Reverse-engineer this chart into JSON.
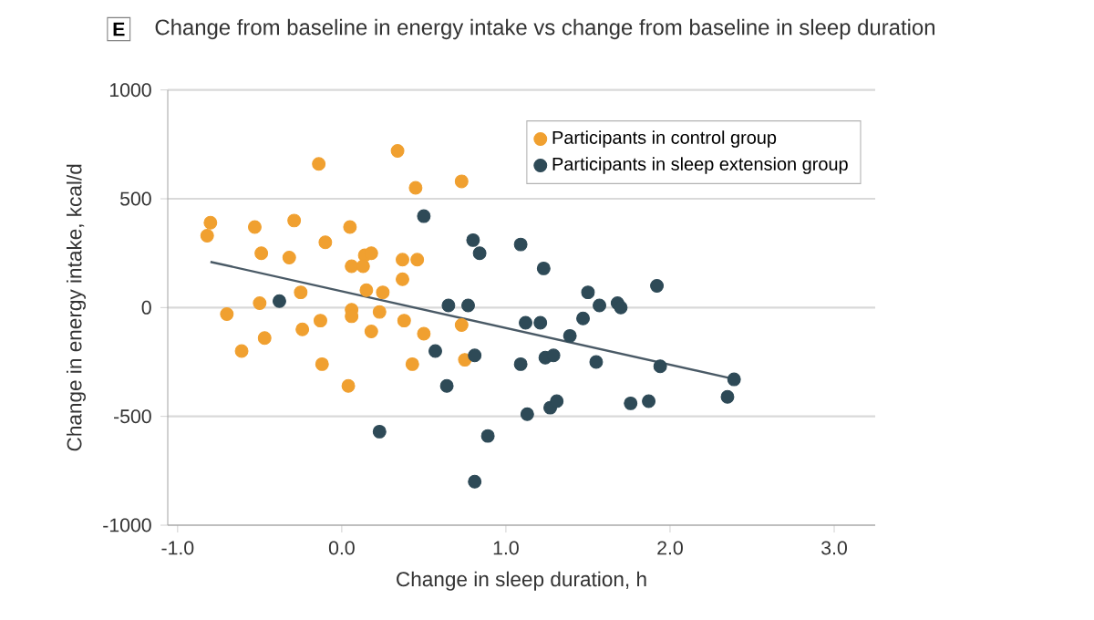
{
  "chart_data": {
    "type": "scatter",
    "title": "Change from baseline in energy intake vs change from baseline in sleep duration",
    "annotations": [
      "E"
    ],
    "xlabel": "Change in sleep duration, h",
    "ylabel": "Change in energy intake, kcal/d",
    "xlim": [
      -1.06,
      3.25
    ],
    "ylim": [
      -1000,
      1000
    ],
    "xticks": [
      {
        "value": -1,
        "label": "-1.0"
      },
      {
        "value": 0,
        "label": "0.0"
      },
      {
        "value": 1,
        "label": "1.0"
      },
      {
        "value": 2,
        "label": "2.0"
      },
      {
        "value": 3,
        "label": "3.0"
      }
    ],
    "yticks": [
      -1000,
      -500,
      0,
      500,
      1000
    ],
    "grid": "y",
    "legend": "top right",
    "marker": "circle",
    "series": [
      {
        "name": "Participants in control group",
        "color": "#f0a030",
        "x": [
          -0.8,
          -0.82,
          -0.53,
          -0.29,
          -0.14,
          0.34,
          0.45,
          0.73,
          -0.49,
          -0.32,
          -0.1,
          0.05,
          0.14,
          0.18,
          0.06,
          0.13,
          0.37,
          0.46,
          0.37,
          -0.25,
          0.15,
          0.25,
          -0.5,
          -0.7,
          -0.13,
          0.06,
          0.06,
          0.23,
          0.38,
          -0.24,
          -0.47,
          0.18,
          0.5,
          0.73,
          -0.61,
          -0.12,
          0.43,
          0.75,
          0.04
        ],
        "values": [
          390,
          330,
          370,
          400,
          660,
          720,
          550,
          580,
          250,
          230,
          300,
          370,
          240,
          250,
          190,
          190,
          220,
          220,
          130,
          70,
          80,
          70,
          20,
          -30,
          -60,
          -10,
          -40,
          -20,
          -60,
          -100,
          -140,
          -110,
          -120,
          -80,
          -200,
          -260,
          -260,
          -240,
          -360
        ]
      },
      {
        "name": "Participants in sleep extension group",
        "color": "#2e4a57",
        "x": [
          -0.38,
          0.5,
          0.8,
          0.84,
          0.65,
          0.77,
          0.57,
          0.81,
          0.64,
          0.23,
          0.89,
          0.81,
          1.09,
          1.23,
          1.92,
          1.5,
          1.57,
          1.68,
          1.7,
          1.12,
          1.21,
          1.47,
          1.39,
          1.09,
          1.24,
          1.29,
          1.55,
          1.94,
          2.39,
          2.35,
          1.76,
          1.87,
          1.13,
          1.27,
          1.31
        ],
        "values": [
          30,
          420,
          310,
          250,
          10,
          10,
          -200,
          -220,
          -360,
          -570,
          -590,
          -800,
          290,
          180,
          100,
          70,
          10,
          20,
          0,
          -70,
          -70,
          -50,
          -130,
          -260,
          -230,
          -220,
          -250,
          -270,
          -330,
          -410,
          -440,
          -430,
          -490,
          -460,
          -430
        ]
      },
      {
        "type": "line",
        "marker": "none",
        "color": "#4a5a66",
        "x": [
          -0.8,
          2.4
        ],
        "values": [
          210,
          -330
        ]
      }
    ]
  }
}
